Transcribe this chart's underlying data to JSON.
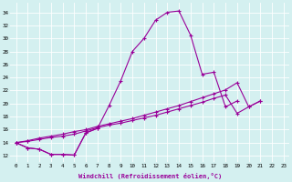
{
  "xlabel": "Windchill (Refroidissement éolien,°C)",
  "background_color": "#d4f0f0",
  "line_color": "#990099",
  "x_ticks": [
    0,
    1,
    2,
    3,
    4,
    5,
    6,
    7,
    8,
    9,
    10,
    11,
    12,
    13,
    14,
    15,
    16,
    17,
    18,
    19,
    20,
    21,
    22,
    23
  ],
  "y_ticks": [
    12,
    14,
    16,
    18,
    20,
    22,
    24,
    26,
    28,
    30,
    32,
    34
  ],
  "ylim": [
    11.0,
    35.5
  ],
  "xlim": [
    -0.5,
    23.5
  ],
  "series": [
    [
      14.0,
      13.2,
      13.0,
      12.2,
      12.2,
      12.1,
      15.5,
      16.2,
      null,
      null,
      null,
      null,
      null,
      null,
      null,
      null,
      null,
      null,
      null,
      null,
      null,
      null,
      null,
      null
    ],
    [
      14.0,
      13.2,
      13.0,
      12.2,
      12.2,
      12.1,
      15.5,
      16.2,
      19.7,
      23.5,
      28.0,
      30.0,
      32.8,
      34.0,
      34.2,
      30.5,
      24.5,
      24.8,
      19.5,
      20.4,
      null,
      null,
      null,
      null
    ],
    [
      14.0,
      14.3,
      14.7,
      15.0,
      15.3,
      15.7,
      16.0,
      16.5,
      16.9,
      17.3,
      17.7,
      18.2,
      18.7,
      19.2,
      19.7,
      20.3,
      20.9,
      21.5,
      22.1,
      23.2,
      19.5,
      20.4,
      null,
      null
    ],
    [
      14.0,
      14.2,
      14.5,
      14.8,
      15.0,
      15.3,
      15.8,
      16.3,
      16.7,
      17.0,
      17.4,
      17.8,
      18.2,
      18.7,
      19.2,
      19.7,
      20.2,
      20.8,
      21.3,
      18.5,
      19.5,
      20.4,
      null,
      null
    ]
  ]
}
